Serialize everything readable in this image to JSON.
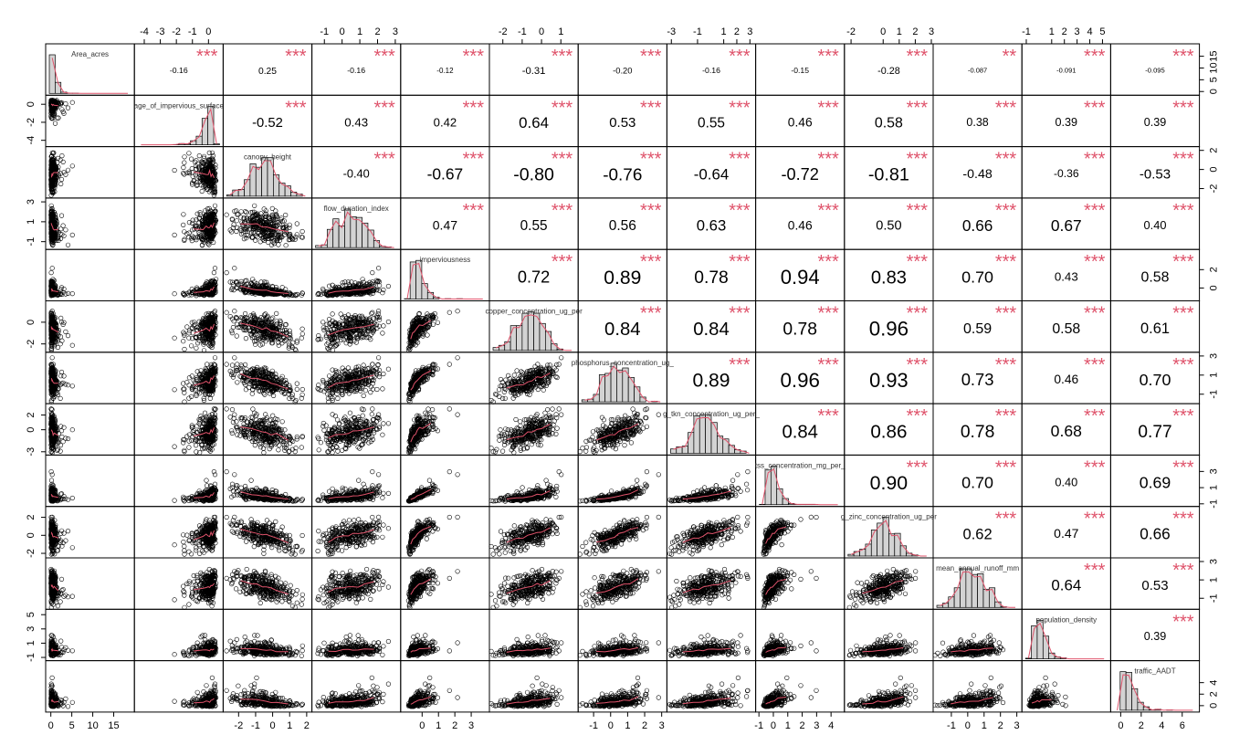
{
  "chart_data": {
    "type": "scatter-matrix",
    "variables": [
      "Area_acres",
      "age_of_impervious_surface",
      "canopy_height",
      "flow_duration_index",
      "imperviousness",
      "copper_concentration_ug_per",
      "phosphorus_concentration_ug_",
      "g_tkn_concentration_ug_per_",
      "tss_concentration_mg_per_",
      "g_zinc_concentration_ug_per",
      "mean_annual_runoff_mm",
      "population_density",
      "traffic_AADT"
    ],
    "correlations": [
      [
        null,
        -0.16,
        0.25,
        -0.16,
        -0.12,
        -0.31,
        -0.2,
        -0.16,
        -0.15,
        -0.28,
        -0.087,
        -0.091,
        -0.095
      ],
      [
        null,
        null,
        -0.52,
        0.43,
        0.42,
        0.64,
        0.53,
        0.55,
        0.46,
        0.58,
        0.38,
        0.39,
        0.39
      ],
      [
        null,
        null,
        null,
        -0.4,
        -0.67,
        -0.8,
        -0.76,
        -0.64,
        -0.72,
        -0.81,
        -0.48,
        -0.36,
        -0.53
      ],
      [
        null,
        null,
        null,
        null,
        0.47,
        0.55,
        0.56,
        0.63,
        0.46,
        0.5,
        0.66,
        0.67,
        0.4
      ],
      [
        null,
        null,
        null,
        null,
        null,
        0.72,
        0.89,
        0.78,
        0.94,
        0.83,
        0.7,
        0.43,
        0.58
      ],
      [
        null,
        null,
        null,
        null,
        null,
        null,
        0.84,
        0.84,
        0.78,
        0.96,
        0.59,
        0.58,
        0.61
      ],
      [
        null,
        null,
        null,
        null,
        null,
        null,
        null,
        0.89,
        0.96,
        0.93,
        0.73,
        0.46,
        0.7
      ],
      [
        null,
        null,
        null,
        null,
        null,
        null,
        null,
        null,
        0.84,
        0.86,
        0.78,
        0.68,
        0.77
      ],
      [
        null,
        null,
        null,
        null,
        null,
        null,
        null,
        null,
        null,
        0.9,
        0.7,
        0.4,
        0.69
      ],
      [
        null,
        null,
        null,
        null,
        null,
        null,
        null,
        null,
        null,
        null,
        0.62,
        0.47,
        0.66
      ],
      [
        null,
        null,
        null,
        null,
        null,
        null,
        null,
        null,
        null,
        null,
        null,
        0.64,
        0.53
      ],
      [
        null,
        null,
        null,
        null,
        null,
        null,
        null,
        null,
        null,
        null,
        null,
        null,
        0.39
      ]
    ],
    "correlation_labels": [
      [
        null,
        "-0.16",
        "0.25",
        "-0.16",
        "-0.12",
        "-0.31",
        "-0.20",
        "-0.16",
        "-0.15",
        "-0.28",
        "-0.087",
        "-0.091",
        "-0.095"
      ],
      [
        null,
        null,
        "-0.52",
        "0.43",
        "0.42",
        "0.64",
        "0.53",
        "0.55",
        "0.46",
        "0.58",
        "0.38",
        "0.39",
        "0.39"
      ],
      [
        null,
        null,
        null,
        "-0.40",
        "-0.67",
        "-0.80",
        "-0.76",
        "-0.64",
        "-0.72",
        "-0.81",
        "-0.48",
        "-0.36",
        "-0.53"
      ],
      [
        null,
        null,
        null,
        null,
        "0.47",
        "0.55",
        "0.56",
        "0.63",
        "0.46",
        "0.50",
        "0.66",
        "0.67",
        "0.40"
      ],
      [
        null,
        null,
        null,
        null,
        null,
        "0.72",
        "0.89",
        "0.78",
        "0.94",
        "0.83",
        "0.70",
        "0.43",
        "0.58"
      ],
      [
        null,
        null,
        null,
        null,
        null,
        null,
        "0.84",
        "0.84",
        "0.78",
        "0.96",
        "0.59",
        "0.58",
        "0.61"
      ],
      [
        null,
        null,
        null,
        null,
        null,
        null,
        null,
        "0.89",
        "0.96",
        "0.93",
        "0.73",
        "0.46",
        "0.70"
      ],
      [
        null,
        null,
        null,
        null,
        null,
        null,
        null,
        null,
        "0.84",
        "0.86",
        "0.78",
        "0.68",
        "0.77"
      ],
      [
        null,
        null,
        null,
        null,
        null,
        null,
        null,
        null,
        null,
        "0.90",
        "0.70",
        "0.40",
        "0.69"
      ],
      [
        null,
        null,
        null,
        null,
        null,
        null,
        null,
        null,
        null,
        null,
        "0.62",
        "0.47",
        "0.66"
      ],
      [
        null,
        null,
        null,
        null,
        null,
        null,
        null,
        null,
        null,
        null,
        null,
        "0.64",
        "0.53"
      ],
      [
        null,
        null,
        null,
        null,
        null,
        null,
        null,
        null,
        null,
        null,
        null,
        null,
        "0.39"
      ]
    ],
    "significance": [
      [
        null,
        "***",
        "***",
        "***",
        "***",
        "***",
        "***",
        "***",
        "***",
        "***",
        "**",
        "***",
        "***"
      ],
      [
        null,
        null,
        "***",
        "***",
        "***",
        "***",
        "***",
        "***",
        "***",
        "***",
        "***",
        "***",
        "***"
      ],
      [
        null,
        null,
        null,
        "***",
        "***",
        "***",
        "***",
        "***",
        "***",
        "***",
        "***",
        "***",
        "***"
      ],
      [
        null,
        null,
        null,
        null,
        "***",
        "***",
        "***",
        "***",
        "***",
        "***",
        "***",
        "***",
        "***"
      ],
      [
        null,
        null,
        null,
        null,
        null,
        "***",
        "***",
        "***",
        "***",
        "***",
        "***",
        "***",
        "***"
      ],
      [
        null,
        null,
        null,
        null,
        null,
        null,
        "***",
        "***",
        "***",
        "***",
        "***",
        "***",
        "***"
      ],
      [
        null,
        null,
        null,
        null,
        null,
        null,
        null,
        "***",
        "***",
        "***",
        "***",
        "***",
        "***"
      ],
      [
        null,
        null,
        null,
        null,
        null,
        null,
        null,
        null,
        "***",
        "***",
        "***",
        "***",
        "***"
      ],
      [
        null,
        null,
        null,
        null,
        null,
        null,
        null,
        null,
        null,
        "***",
        "***",
        "***",
        "***"
      ],
      [
        null,
        null,
        null,
        null,
        null,
        null,
        null,
        null,
        null,
        null,
        "***",
        "***",
        "***"
      ],
      [
        null,
        null,
        null,
        null,
        null,
        null,
        null,
        null,
        null,
        null,
        null,
        "***",
        "***"
      ],
      [
        null,
        null,
        null,
        null,
        null,
        null,
        null,
        null,
        null,
        null,
        null,
        null,
        "***"
      ]
    ],
    "axis_ticks": {
      "top": [
        {
          "col": 1,
          "min": -4.5,
          "max": 0.8,
          "ticks": [
            "-4",
            "-3",
            "-2",
            "-1",
            "0"
          ]
        },
        {
          "col": 3,
          "min": -1.6,
          "max": 3.2,
          "ticks": [
            "-1",
            "0",
            "1",
            "2",
            "3"
          ]
        },
        {
          "col": 5,
          "min": -2.6,
          "max": 1.8,
          "ticks": [
            "-2",
            "-1",
            "0",
            "1"
          ]
        },
        {
          "col": 7,
          "min": -3.2,
          "max": 3.3,
          "ticks": [
            "-3",
            "-1",
            "1",
            "2",
            "3"
          ]
        },
        {
          "col": 9,
          "min": -2.3,
          "max": 3.0,
          "ticks": [
            "-2",
            "0",
            "1",
            "2",
            "3"
          ]
        },
        {
          "col": 11,
          "min": -1.2,
          "max": 5.5,
          "ticks": [
            "-1",
            "1",
            "2",
            "3",
            "4",
            "5"
          ]
        }
      ],
      "bottom": [
        {
          "col": 0,
          "min": -0.8,
          "max": 19.5,
          "ticks": [
            "0",
            "5",
            "10",
            "15"
          ]
        },
        {
          "col": 2,
          "min": -2.8,
          "max": 2.2,
          "ticks": [
            "-2",
            "-1",
            "0",
            "1",
            "2"
          ]
        },
        {
          "col": 4,
          "min": -1.2,
          "max": 4.0,
          "ticks": [
            "0",
            "1",
            "2",
            "3"
          ]
        },
        {
          "col": 6,
          "min": -1.8,
          "max": 3.2,
          "ticks": [
            "-1",
            "0",
            "1",
            "2",
            "3"
          ]
        },
        {
          "col": 8,
          "min": -1.1,
          "max": 4.8,
          "ticks": [
            "-1",
            "0",
            "1",
            "2",
            "3",
            "4"
          ]
        },
        {
          "col": 10,
          "min": -2.0,
          "max": 3.2,
          "ticks": [
            "-1",
            "0",
            "1",
            "2",
            "3"
          ]
        },
        {
          "col": 12,
          "min": -0.8,
          "max": 7.5,
          "ticks": [
            "0",
            "2",
            "4",
            "6"
          ]
        }
      ],
      "left": [
        {
          "row": 1,
          "min": -4.5,
          "max": 0.8,
          "ticks": [
            "-4",
            "-2",
            "0"
          ]
        },
        {
          "row": 3,
          "min": -1.6,
          "max": 3.2,
          "ticks": [
            "-1",
            "1",
            "3"
          ]
        },
        {
          "row": 5,
          "min": -2.6,
          "max": 1.8,
          "ticks": [
            "-2",
            "0"
          ]
        },
        {
          "row": 7,
          "min": -3.2,
          "max": 3.3,
          "ticks": [
            "-3",
            "0",
            "2"
          ]
        },
        {
          "row": 9,
          "min": -2.3,
          "max": 3.0,
          "ticks": [
            "-2",
            "0",
            "2"
          ]
        },
        {
          "row": 11,
          "min": -1.2,
          "max": 5.5,
          "ticks": [
            "-1",
            "1",
            "3",
            "5"
          ]
        }
      ],
      "right": [
        {
          "row": 0,
          "min": -0.8,
          "max": 19.5,
          "ticks": [
            "0",
            "5",
            "10",
            "15"
          ]
        },
        {
          "row": 2,
          "min": -2.8,
          "max": 2.2,
          "ticks": [
            "-2",
            "0",
            "2"
          ]
        },
        {
          "row": 4,
          "min": -1.2,
          "max": 4.0,
          "ticks": [
            "0",
            "2"
          ]
        },
        {
          "row": 6,
          "min": -1.8,
          "max": 3.2,
          "ticks": [
            "-1",
            "1",
            "3"
          ]
        },
        {
          "row": 8,
          "min": -1.1,
          "max": 4.8,
          "ticks": [
            "-1",
            "1",
            "3"
          ]
        },
        {
          "row": 10,
          "min": -2.0,
          "max": 3.2,
          "ticks": [
            "-1",
            "1",
            "3"
          ]
        },
        {
          "row": 12,
          "min": -0.8,
          "max": 7.5,
          "ticks": [
            "0",
            "2",
            "4"
          ]
        }
      ]
    },
    "grid": false,
    "legend": "none"
  }
}
